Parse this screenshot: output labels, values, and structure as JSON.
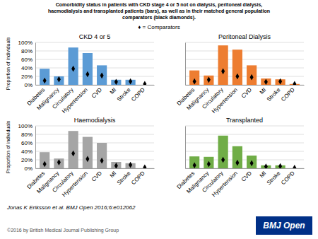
{
  "title": "Comorbidity status in patients with CKD stage 4 or 5 not on dialysis, peritoneal dialysis,\nhaemodialysis and transplanted patients (bars), as well as in their matched general population\ncomparators (black diamonds).",
  "annotations": [
    "♦ = Comparators",
    "Jonas K Eriksson et al. BMJ Open 2016;6:e012062",
    "©2016 by British Medical Journal Publishing Group",
    "BMJ Open"
  ],
  "chart_data": [
    {
      "type": "bar",
      "title": "CKD 4 or 5",
      "ylabel": "Proportion of individuals",
      "categories": [
        "Diabetes",
        "Malignancy",
        "Circulatory",
        "Hypertension",
        "CVD",
        "MI",
        "Stroke",
        "COPD"
      ],
      "series": [
        {
          "type": "bar",
          "color": "#5b9bd5",
          "values": [
            38,
            20,
            88,
            75,
            46,
            12,
            12,
            0
          ]
        },
        {
          "type": "scatter",
          "marker": "diamond",
          "color": "#000000",
          "values": [
            10,
            13,
            38,
            25,
            22,
            7,
            8,
            2
          ]
        }
      ],
      "ylim": [
        0,
        100
      ],
      "yticks": [
        {
          "value": 0,
          "label": "0%"
        },
        {
          "value": 20,
          "label": "20%"
        },
        {
          "value": 40,
          "label": "40%"
        },
        {
          "value": 60,
          "label": "60%"
        },
        {
          "value": 80,
          "label": "80%"
        },
        {
          "value": 100,
          "label": "100%"
        }
      ],
      "grid": true
    },
    {
      "type": "bar",
      "title": "Peritoneal Dialysis",
      "categories": [
        "Diabetes",
        "Malignancy",
        "Circulatory",
        "Hypertension",
        "CVD",
        "MI",
        "Stroke",
        "COPD"
      ],
      "series": [
        {
          "type": "bar",
          "color": "#ed7d31",
          "values": [
            34,
            22,
            93,
            83,
            46,
            15,
            13,
            2
          ]
        },
        {
          "type": "scatter",
          "marker": "diamond",
          "color": "#000000",
          "values": [
            8,
            12,
            32,
            20,
            18,
            7,
            8,
            2
          ]
        }
      ],
      "ylim": [
        0,
        100
      ],
      "yticks": [
        0,
        20,
        40,
        60,
        80,
        100
      ],
      "grid": true,
      "tick_labels": "x"
    },
    {
      "type": "bar",
      "title": "Haemodialysis",
      "ylabel": "Proportion of individuals",
      "categories": [
        "Diabetes",
        "Malignancy",
        "Circulatory",
        "Hypertension",
        "CVD",
        "MI",
        "Stroke",
        "COPD"
      ],
      "series": [
        {
          "type": "bar",
          "color": "#a5a5a5",
          "values": [
            38,
            23,
            88,
            74,
            60,
            15,
            12,
            0
          ]
        },
        {
          "type": "scatter",
          "marker": "diamond",
          "color": "#000000",
          "values": [
            10,
            14,
            35,
            22,
            18,
            6,
            8,
            2
          ]
        }
      ],
      "ylim": [
        0,
        100
      ],
      "yticks": [
        {
          "value": 0,
          "label": "0%"
        },
        {
          "value": 20,
          "label": "20%"
        },
        {
          "value": 40,
          "label": "40%"
        },
        {
          "value": 60,
          "label": "60%"
        },
        {
          "value": 80,
          "label": "80%"
        },
        {
          "value": 100,
          "label": "100%"
        }
      ],
      "grid": true
    },
    {
      "type": "bar",
      "title": "Transplanted",
      "categories": [
        "Diabetes",
        "Malignancy",
        "Circulatory",
        "Hypertension",
        "CVD",
        "MI",
        "Stroke",
        "COPD"
      ],
      "series": [
        {
          "type": "bar",
          "color": "#70ad47",
          "values": [
            28,
            27,
            77,
            52,
            30,
            7,
            7,
            0
          ]
        },
        {
          "type": "scatter",
          "marker": "diamond",
          "color": "#000000",
          "values": [
            7,
            10,
            20,
            13,
            12,
            4,
            5,
            1
          ]
        }
      ],
      "ylim": [
        0,
        100
      ],
      "yticks": [
        0,
        20,
        40,
        60,
        80,
        100
      ],
      "grid": true,
      "tick_labels": "x"
    }
  ]
}
